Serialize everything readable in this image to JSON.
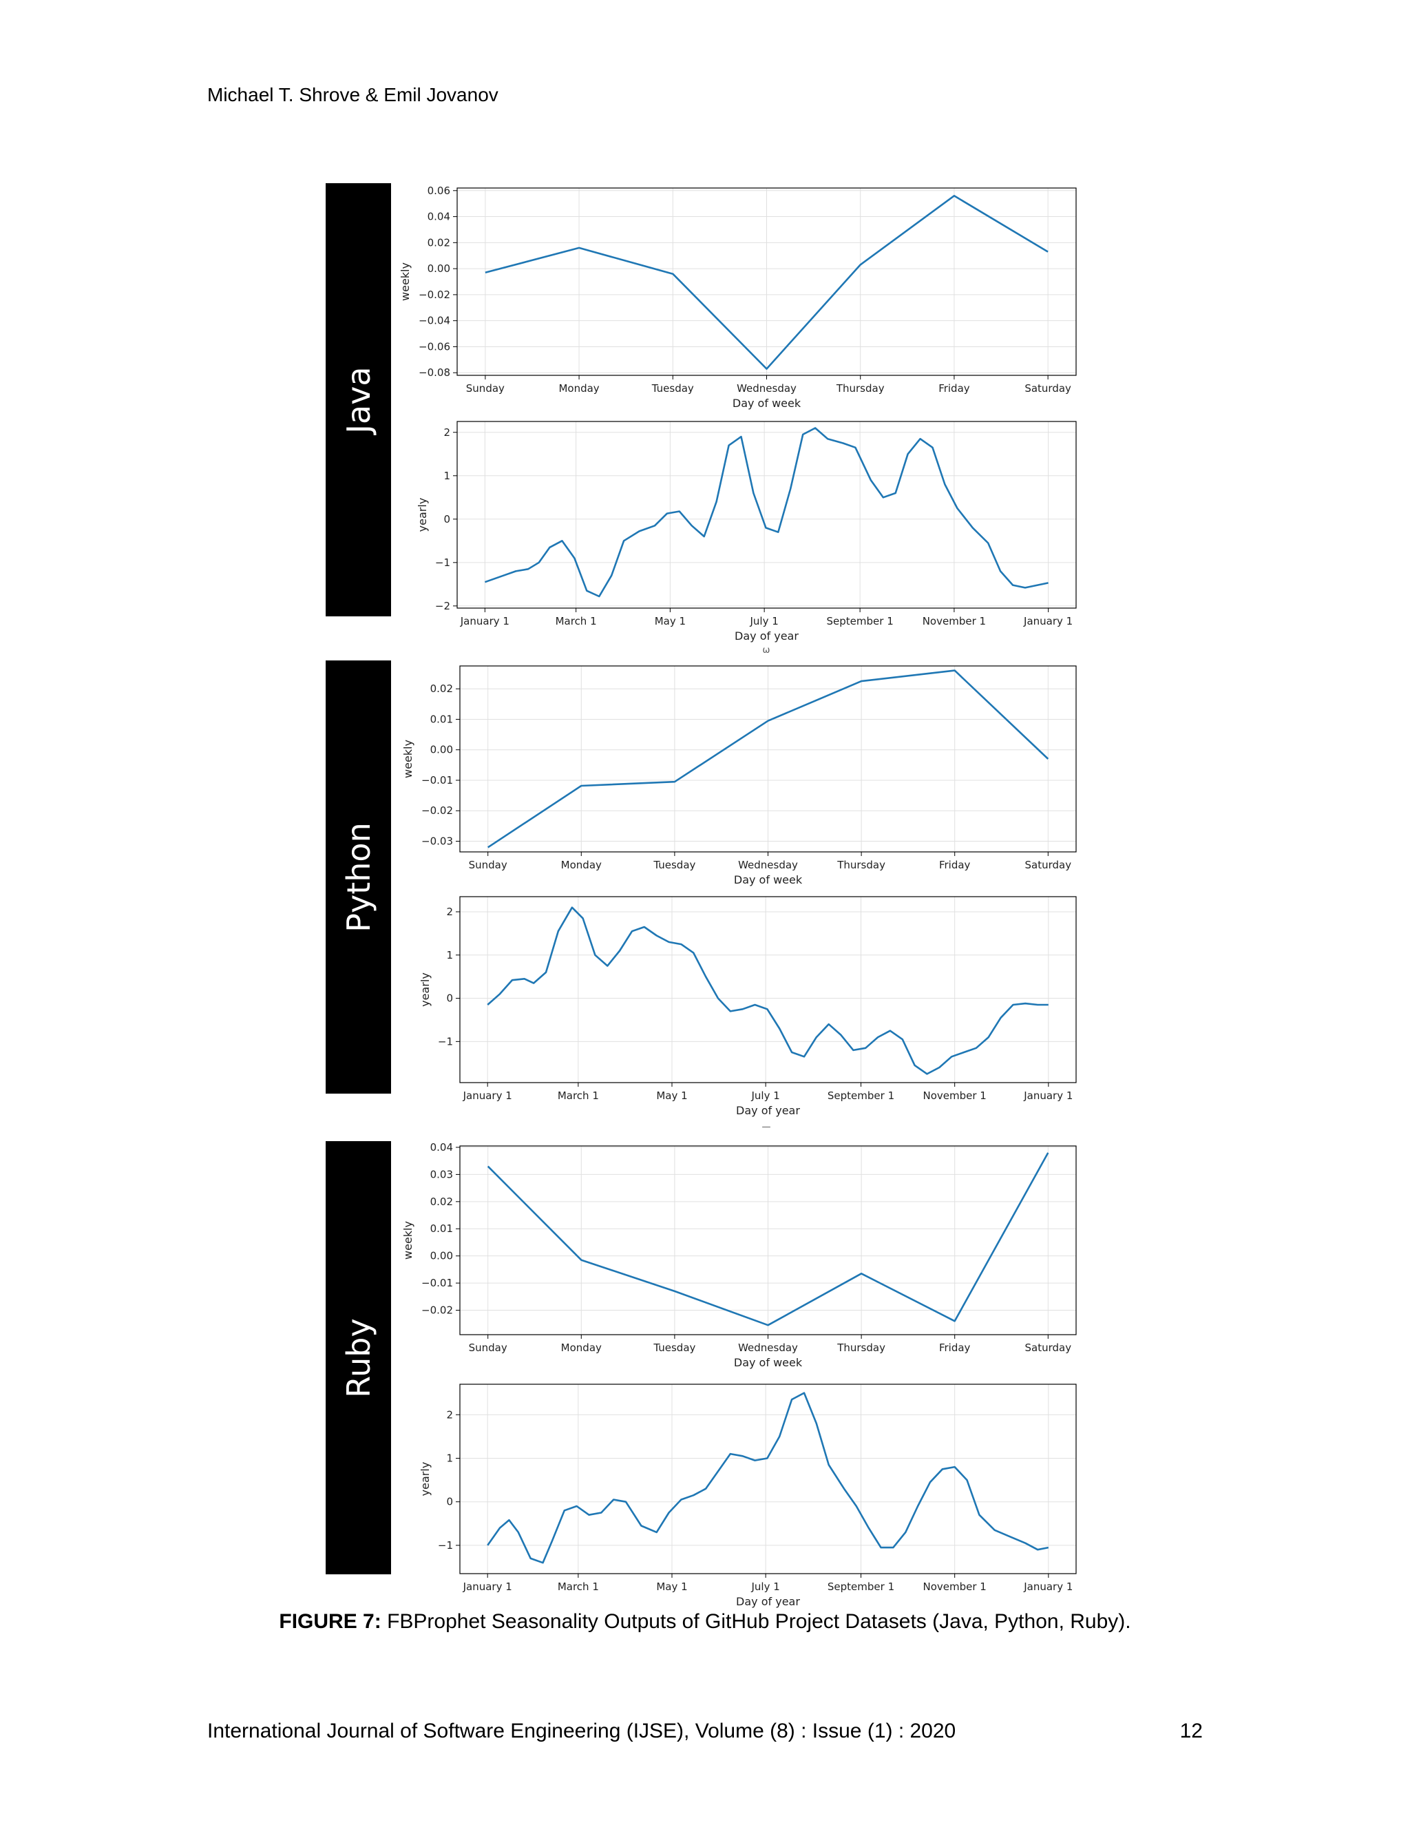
{
  "header": {
    "authors": "Michael T. Shrove & Emil Jovanov"
  },
  "figure": {
    "languages": [
      "Java",
      "Python",
      "Ruby"
    ],
    "separators": [
      "ω",
      "—"
    ]
  },
  "caption": {
    "label": "FIGURE 7:",
    "text": " FBProphet Seasonality Outputs of GitHub Project Datasets (Java, Python, Ruby)."
  },
  "footer": {
    "journal": "International Journal of Software Engineering (IJSE), Volume (8) : Issue (1) : 2020",
    "page": "12"
  },
  "colors": {
    "line": "#1f77b4",
    "grid": "#e0e0e0",
    "bar": "#000000"
  },
  "chart_data": [
    {
      "type": "line",
      "group": "Java",
      "component": "weekly",
      "ylabel": "weekly",
      "xlabel": "Day of week",
      "categories": [
        "Sunday",
        "Monday",
        "Tuesday",
        "Wednesday",
        "Thursday",
        "Friday",
        "Saturday"
      ],
      "values": [
        -0.003,
        0.016,
        -0.004,
        -0.077,
        0.003,
        0.056,
        0.013
      ],
      "ylim": [
        -0.082,
        0.062
      ],
      "yticks": [
        -0.08,
        -0.06,
        -0.04,
        -0.02,
        0.0,
        0.02,
        0.04,
        0.06
      ],
      "ytick_labels": [
        "−0.08",
        "−0.06",
        "−0.04",
        "−0.02",
        "0.00",
        "0.02",
        "0.04",
        "0.06"
      ],
      "grid": true
    },
    {
      "type": "line",
      "group": "Java",
      "component": "yearly",
      "ylabel": "yearly",
      "xlabel": "Day of year",
      "xticks": [
        0,
        59,
        120,
        181,
        243,
        304,
        365
      ],
      "xtick_labels": [
        "January 1",
        "March 1",
        "May 1",
        "July 1",
        "September 1",
        "November 1",
        "January 1"
      ],
      "x": [
        0,
        12,
        20,
        28,
        35,
        42,
        50,
        58,
        66,
        74,
        82,
        90,
        100,
        110,
        118,
        126,
        134,
        142,
        150,
        158,
        166,
        174,
        182,
        190,
        198,
        206,
        214,
        222,
        232,
        240,
        250,
        258,
        266,
        274,
        282,
        290,
        298,
        306,
        316,
        326,
        334,
        342,
        350,
        358,
        365
      ],
      "values": [
        -1.45,
        -1.3,
        -1.2,
        -1.15,
        -1.0,
        -0.65,
        -0.5,
        -0.9,
        -1.65,
        -1.78,
        -1.3,
        -0.5,
        -0.28,
        -0.15,
        0.13,
        0.18,
        -0.15,
        -0.4,
        0.4,
        1.7,
        1.9,
        0.6,
        -0.2,
        -0.3,
        0.7,
        1.95,
        2.1,
        1.85,
        1.75,
        1.65,
        0.9,
        0.5,
        0.6,
        1.5,
        1.85,
        1.65,
        0.8,
        0.25,
        -0.2,
        -0.55,
        -1.2,
        -1.52,
        -1.58,
        -1.52,
        -1.47
      ],
      "ylim": [
        -2.05,
        2.25
      ],
      "yticks": [
        -2,
        -1,
        0,
        1,
        2
      ],
      "ytick_labels": [
        "−2",
        "−1",
        "0",
        "1",
        "2"
      ],
      "grid": true
    },
    {
      "type": "line",
      "group": "Python",
      "component": "weekly",
      "ylabel": "weekly",
      "xlabel": "Day of week",
      "categories": [
        "Sunday",
        "Monday",
        "Tuesday",
        "Wednesday",
        "Thursday",
        "Friday",
        "Saturday"
      ],
      "values": [
        -0.032,
        -0.0118,
        -0.0105,
        0.0095,
        0.0225,
        0.026,
        -0.003
      ],
      "ylim": [
        -0.0335,
        0.0275
      ],
      "yticks": [
        -0.03,
        -0.02,
        -0.01,
        0.0,
        0.01,
        0.02
      ],
      "ytick_labels": [
        "−0.03",
        "−0.02",
        "−0.01",
        "0.00",
        "0.01",
        "0.02"
      ],
      "grid": true
    },
    {
      "type": "line",
      "group": "Python",
      "component": "yearly",
      "ylabel": "yearly",
      "xlabel": "Day of year",
      "xticks": [
        0,
        59,
        120,
        181,
        243,
        304,
        365
      ],
      "xtick_labels": [
        "January 1",
        "March 1",
        "May 1",
        "July 1",
        "September 1",
        "November 1",
        "January 1"
      ],
      "x": [
        0,
        8,
        16,
        24,
        30,
        38,
        46,
        55,
        62,
        70,
        78,
        86,
        94,
        102,
        110,
        118,
        126,
        134,
        142,
        150,
        158,
        166,
        174,
        182,
        190,
        198,
        206,
        214,
        222,
        230,
        238,
        246,
        254,
        262,
        270,
        278,
        286,
        294,
        302,
        310,
        318,
        326,
        334,
        342,
        350,
        358,
        365
      ],
      "values": [
        -0.15,
        0.1,
        0.42,
        0.45,
        0.35,
        0.6,
        1.55,
        2.1,
        1.85,
        1.0,
        0.75,
        1.1,
        1.55,
        1.65,
        1.45,
        1.3,
        1.25,
        1.05,
        0.5,
        0.0,
        -0.3,
        -0.25,
        -0.15,
        -0.25,
        -0.7,
        -1.25,
        -1.35,
        -0.9,
        -0.6,
        -0.85,
        -1.2,
        -1.15,
        -0.9,
        -0.75,
        -0.95,
        -1.55,
        -1.75,
        -1.6,
        -1.35,
        -1.25,
        -1.15,
        -0.9,
        -0.45,
        -0.15,
        -0.12,
        -0.15,
        -0.15
      ],
      "ylim": [
        -1.95,
        2.35
      ],
      "yticks": [
        -1,
        0,
        1,
        2
      ],
      "ytick_labels": [
        "−1",
        "0",
        "1",
        "2"
      ],
      "grid": true
    },
    {
      "type": "line",
      "group": "Ruby",
      "component": "weekly",
      "ylabel": "weekly",
      "xlabel": "Day of week",
      "categories": [
        "Sunday",
        "Monday",
        "Tuesday",
        "Wednesday",
        "Thursday",
        "Friday",
        "Saturday"
      ],
      "values": [
        0.033,
        -0.0015,
        -0.013,
        -0.0255,
        -0.0065,
        -0.024,
        0.038
      ],
      "ylim": [
        -0.029,
        0.0405
      ],
      "yticks": [
        -0.02,
        -0.01,
        0.0,
        0.01,
        0.02,
        0.03,
        0.04
      ],
      "ytick_labels": [
        "−0.02",
        "−0.01",
        "0.00",
        "0.01",
        "0.02",
        "0.03",
        "0.04"
      ],
      "grid": true
    },
    {
      "type": "line",
      "group": "Ruby",
      "component": "yearly",
      "ylabel": "yearly",
      "xlabel": "Day of year",
      "xticks": [
        0,
        59,
        120,
        181,
        243,
        304,
        365
      ],
      "xtick_labels": [
        "January 1",
        "March 1",
        "May 1",
        "July 1",
        "September 1",
        "November 1",
        "January 1"
      ],
      "x": [
        0,
        8,
        14,
        20,
        28,
        36,
        42,
        50,
        58,
        66,
        74,
        82,
        90,
        100,
        110,
        118,
        126,
        134,
        142,
        150,
        158,
        166,
        174,
        182,
        190,
        198,
        206,
        214,
        222,
        232,
        240,
        248,
        256,
        264,
        272,
        280,
        288,
        296,
        304,
        312,
        320,
        330,
        340,
        350,
        358,
        365
      ],
      "values": [
        -1.0,
        -0.6,
        -0.42,
        -0.7,
        -1.3,
        -1.4,
        -0.9,
        -0.2,
        -0.1,
        -0.3,
        -0.25,
        0.05,
        0.0,
        -0.55,
        -0.7,
        -0.25,
        0.05,
        0.15,
        0.3,
        0.7,
        1.1,
        1.05,
        0.95,
        1.0,
        1.5,
        2.35,
        2.5,
        1.8,
        0.85,
        0.3,
        -0.1,
        -0.6,
        -1.05,
        -1.05,
        -0.7,
        -0.1,
        0.45,
        0.75,
        0.8,
        0.5,
        -0.3,
        -0.65,
        -0.8,
        -0.95,
        -1.1,
        -1.05
      ],
      "ylim": [
        -1.65,
        2.7
      ],
      "yticks": [
        -1,
        0,
        1,
        2
      ],
      "ytick_labels": [
        "−1",
        "0",
        "1",
        "2"
      ],
      "grid": true
    }
  ]
}
